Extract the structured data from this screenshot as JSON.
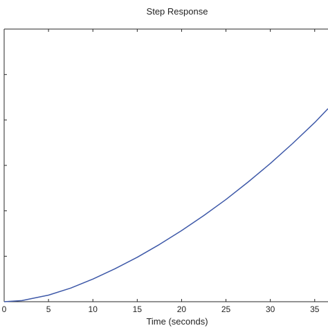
{
  "chart_data": {
    "type": "line",
    "title": "Step Response",
    "xlabel": "Time (seconds)",
    "ylabel": "",
    "xlim": [
      0,
      36.5
    ],
    "ylim": [
      0,
      1.0
    ],
    "x_ticks": [
      0,
      5,
      10,
      15,
      20,
      25,
      30,
      35
    ],
    "x_tick_labels": [
      "0",
      "5",
      "10",
      "15",
      "20",
      "25",
      "30",
      "35"
    ],
    "y_ticks": [
      0,
      0.1667,
      0.3333,
      0.5,
      0.6667,
      0.8333,
      1.0
    ],
    "grid": false,
    "legend": "none",
    "series": [
      {
        "color": "#3d58a8",
        "x": [
          0,
          2,
          5,
          7.5,
          10,
          12.5,
          15,
          17.5,
          20,
          22.5,
          25,
          27.5,
          30,
          32.5,
          35,
          36.5
        ],
        "y": [
          0,
          0.004,
          0.024,
          0.05,
          0.083,
          0.121,
          0.163,
          0.21,
          0.261,
          0.316,
          0.375,
          0.439,
          0.507,
          0.58,
          0.657,
          0.708
        ]
      }
    ]
  }
}
